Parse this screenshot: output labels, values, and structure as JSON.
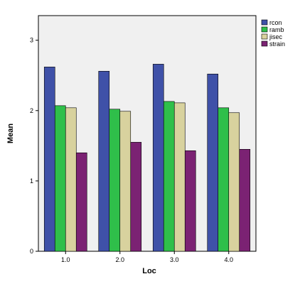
{
  "chart_data": {
    "type": "bar",
    "title": "",
    "xlabel": "Loc",
    "ylabel": "Mean",
    "categories": [
      "1.0",
      "2.0",
      "3.0",
      "4.0"
    ],
    "ylim": [
      0,
      3.35
    ],
    "yticks": [
      0,
      1,
      2,
      3
    ],
    "grid": false,
    "legend_position": "top-right",
    "series": [
      {
        "name": "rcon",
        "color": "#3f51a8",
        "values": [
          2.62,
          2.56,
          2.66,
          2.52
        ]
      },
      {
        "name": "ramb",
        "color": "#2fbf4a",
        "values": [
          2.07,
          2.02,
          2.13,
          2.04
        ]
      },
      {
        "name": "jisec",
        "color": "#d8d29e",
        "values": [
          2.04,
          1.99,
          2.11,
          1.97
        ]
      },
      {
        "name": "strain",
        "color": "#7b2273",
        "values": [
          1.4,
          1.55,
          1.43,
          1.45
        ]
      }
    ],
    "plot_background": "#f0f0f0"
  }
}
